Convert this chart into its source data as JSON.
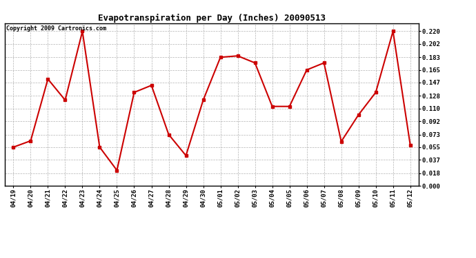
{
  "title": "Evapotranspiration per Day (Inches) 20090513",
  "copyright": "Copyright 2009 Cartronics.com",
  "dates": [
    "04/19",
    "04/20",
    "04/21",
    "04/22",
    "04/23",
    "04/24",
    "04/25",
    "04/26",
    "04/27",
    "04/28",
    "04/29",
    "04/30",
    "05/01",
    "05/02",
    "05/03",
    "05/04",
    "05/05",
    "05/06",
    "05/07",
    "05/08",
    "05/09",
    "05/10",
    "05/11",
    "05/12"
  ],
  "values": [
    0.055,
    0.064,
    0.152,
    0.122,
    0.22,
    0.055,
    0.022,
    0.133,
    0.143,
    0.073,
    0.043,
    0.122,
    0.183,
    0.185,
    0.175,
    0.113,
    0.113,
    0.165,
    0.175,
    0.063,
    0.101,
    0.133,
    0.22,
    0.058
  ],
  "line_color": "#cc0000",
  "marker": "s",
  "marker_size": 2.5,
  "line_width": 1.5,
  "ylim": [
    0.0,
    0.2315
  ],
  "yticks": [
    0.0,
    0.018,
    0.037,
    0.055,
    0.073,
    0.092,
    0.11,
    0.128,
    0.147,
    0.165,
    0.183,
    0.202,
    0.22
  ],
  "background_color": "#ffffff",
  "plot_bg_color": "#ffffff",
  "grid_color": "#aaaaaa",
  "title_fontsize": 9,
  "copyright_fontsize": 6,
  "tick_fontsize": 6.5,
  "border_color": "#000000"
}
